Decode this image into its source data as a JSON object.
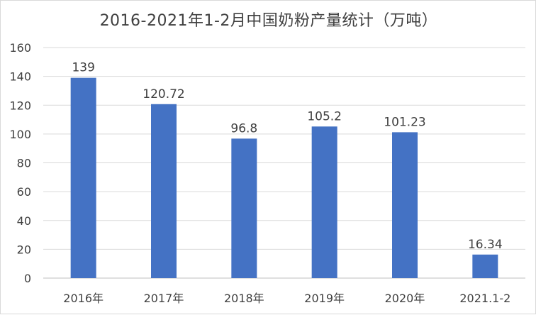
{
  "chart_data": {
    "type": "bar",
    "title": "2016-2021年1-2月中国奶粉产量统计（万吨）",
    "categories": [
      "2016年",
      "2017年",
      "2018年",
      "2019年",
      "2020年",
      "2021.1-2"
    ],
    "values": [
      139,
      120.72,
      96.8,
      105.2,
      101.23,
      16.34
    ],
    "data_labels": [
      "139",
      "120.72",
      "96.8",
      "105.2",
      "101.23",
      "16.34"
    ],
    "ylim": [
      0,
      160
    ],
    "yticks": [
      0,
      20,
      40,
      60,
      80,
      100,
      120,
      140,
      160
    ],
    "grid": true,
    "legend": "none",
    "bar_color": "#4472c4"
  }
}
